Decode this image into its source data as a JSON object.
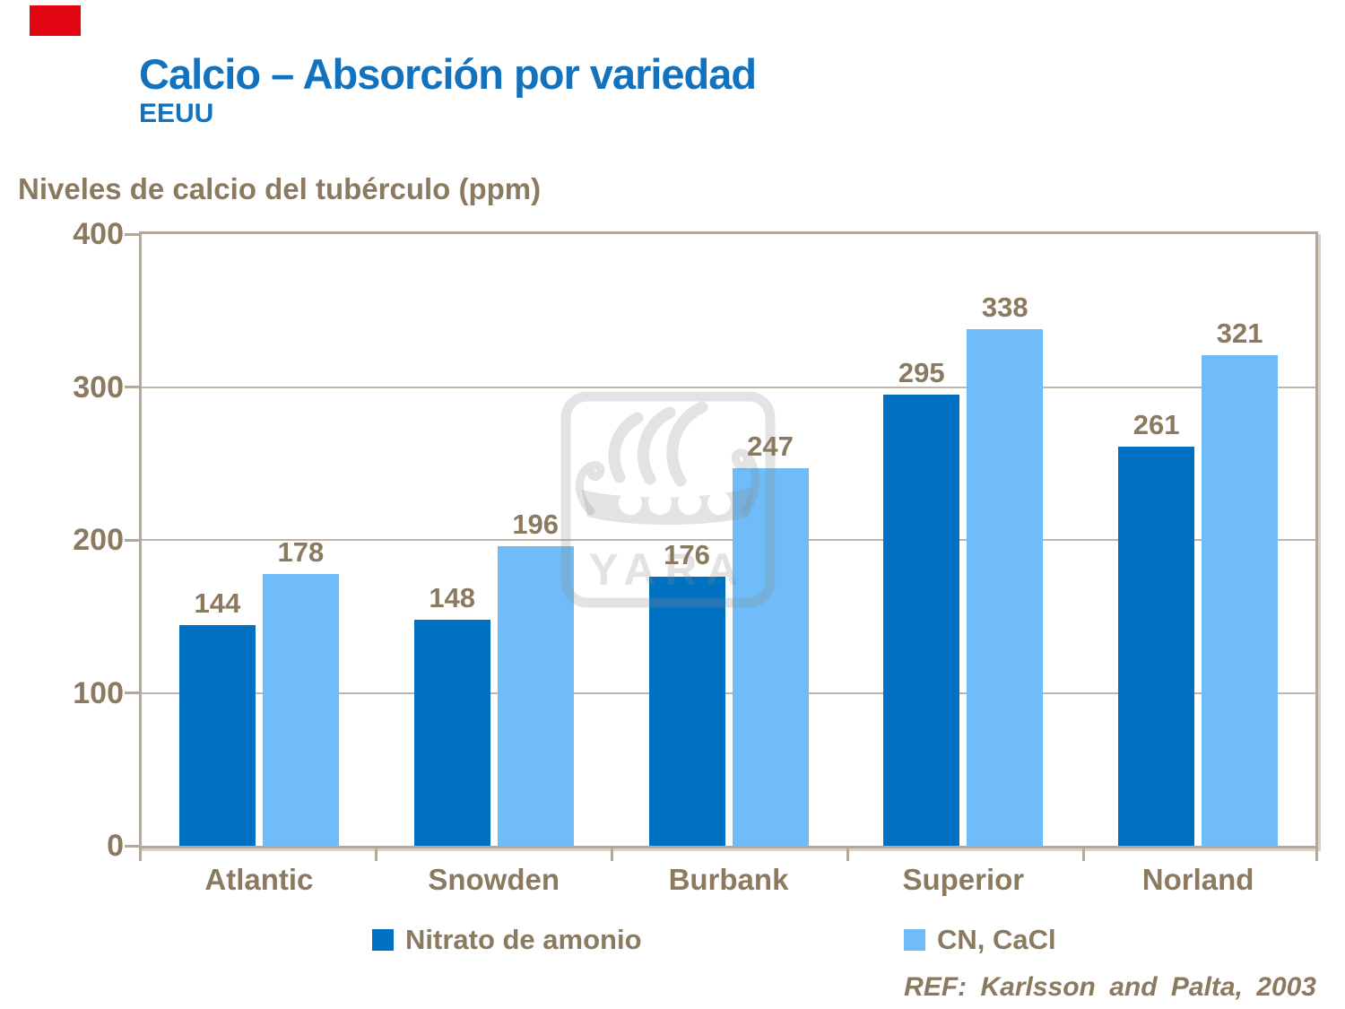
{
  "slide": {
    "title": "Calcio – Absorción por variedad",
    "subtitle": "EEUU",
    "axis_title": "Niveles de calcio del tubérculo (ppm)",
    "reference": "REF: Karlsson and Palta, 2003",
    "watermark": "YARA"
  },
  "colors": {
    "title_blue": "#1272BE",
    "text_brown": "#8B7960",
    "axis_line": "#B3A999",
    "series1_dark_blue": "#0070C0",
    "series2_light_blue": "#6FBCF8",
    "red_marker": "#E20613",
    "watermark_gray": "#E7E7E7"
  },
  "chart_data": {
    "type": "bar",
    "title": "Niveles de calcio del tubérculo (ppm)",
    "categories": [
      "Atlantic",
      "Snowden",
      "Burbank",
      "Superior",
      "Norland"
    ],
    "series": [
      {
        "name": "Nitrato de amonio",
        "color": "#0070C0",
        "values": [
          144,
          148,
          176,
          295,
          261
        ]
      },
      {
        "name": "CN, CaCl",
        "color": "#6FBCF8",
        "values": [
          178,
          196,
          247,
          338,
          321
        ]
      }
    ],
    "xlabel": "",
    "ylabel": "ppm",
    "ylim": [
      0,
      400
    ],
    "yticks": [
      0,
      100,
      200,
      300,
      400
    ],
    "grid": true,
    "data_labels": true,
    "legend_position": "bottom"
  }
}
